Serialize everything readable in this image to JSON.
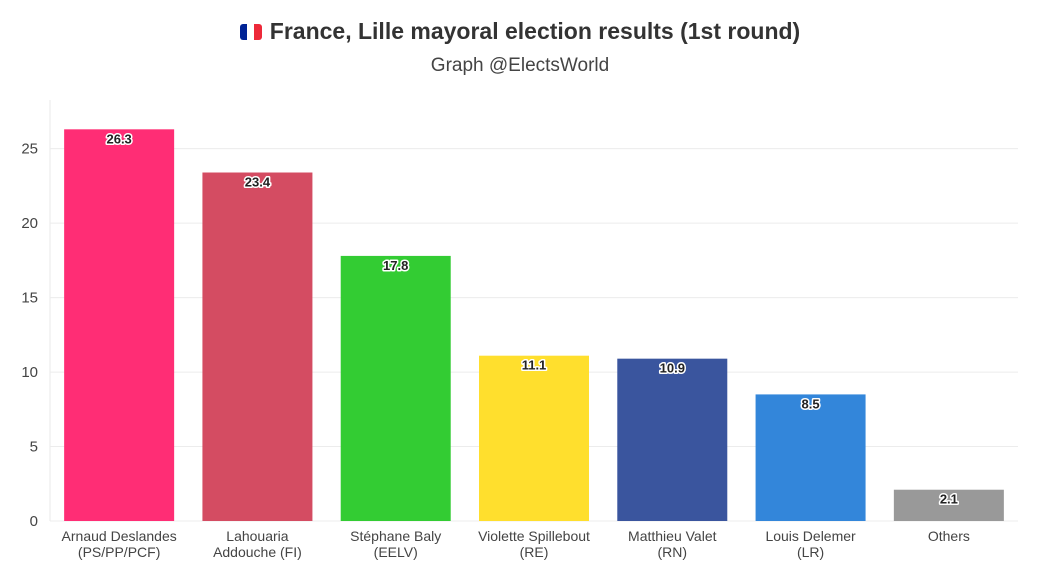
{
  "header": {
    "title": "France, Lille mayoral election results (1st round)",
    "subtitle": "Graph @ElectsWorld",
    "flag_icon": "france-flag-icon",
    "flag_colors": [
      "#002395",
      "#ffffff",
      "#ED2939"
    ]
  },
  "chart_data": {
    "type": "bar",
    "title": "France, Lille mayoral election results (1st round)",
    "subtitle": "Graph @ElectsWorld",
    "xlabel": "",
    "ylabel": "",
    "ylim": [
      0,
      28
    ],
    "yticks": [
      0,
      5,
      10,
      15,
      20,
      25
    ],
    "grid": true,
    "legend": "none",
    "categories": [
      [
        "Arnaud Deslandes",
        "(PS/PP/PCF)"
      ],
      [
        "Lahouaria",
        "Addouche (FI)"
      ],
      [
        "Stéphane Baly",
        "(EELV)"
      ],
      [
        "Violette Spillebout",
        "(RE)"
      ],
      [
        "Matthieu Valet",
        "(RN)"
      ],
      [
        "Louis Delemer",
        "(LR)"
      ],
      [
        "Others"
      ]
    ],
    "values": [
      26.3,
      23.4,
      17.8,
      11.1,
      10.9,
      8.5,
      2.1
    ],
    "value_labels": [
      "26.3",
      "23.4",
      "17.8",
      "11.1",
      "10.9",
      "8.5",
      "2.1"
    ],
    "colors": [
      "#FF2D75",
      "#D44C62",
      "#33CC33",
      "#FFDF2D",
      "#3A559E",
      "#3386DA",
      "#999999"
    ]
  }
}
